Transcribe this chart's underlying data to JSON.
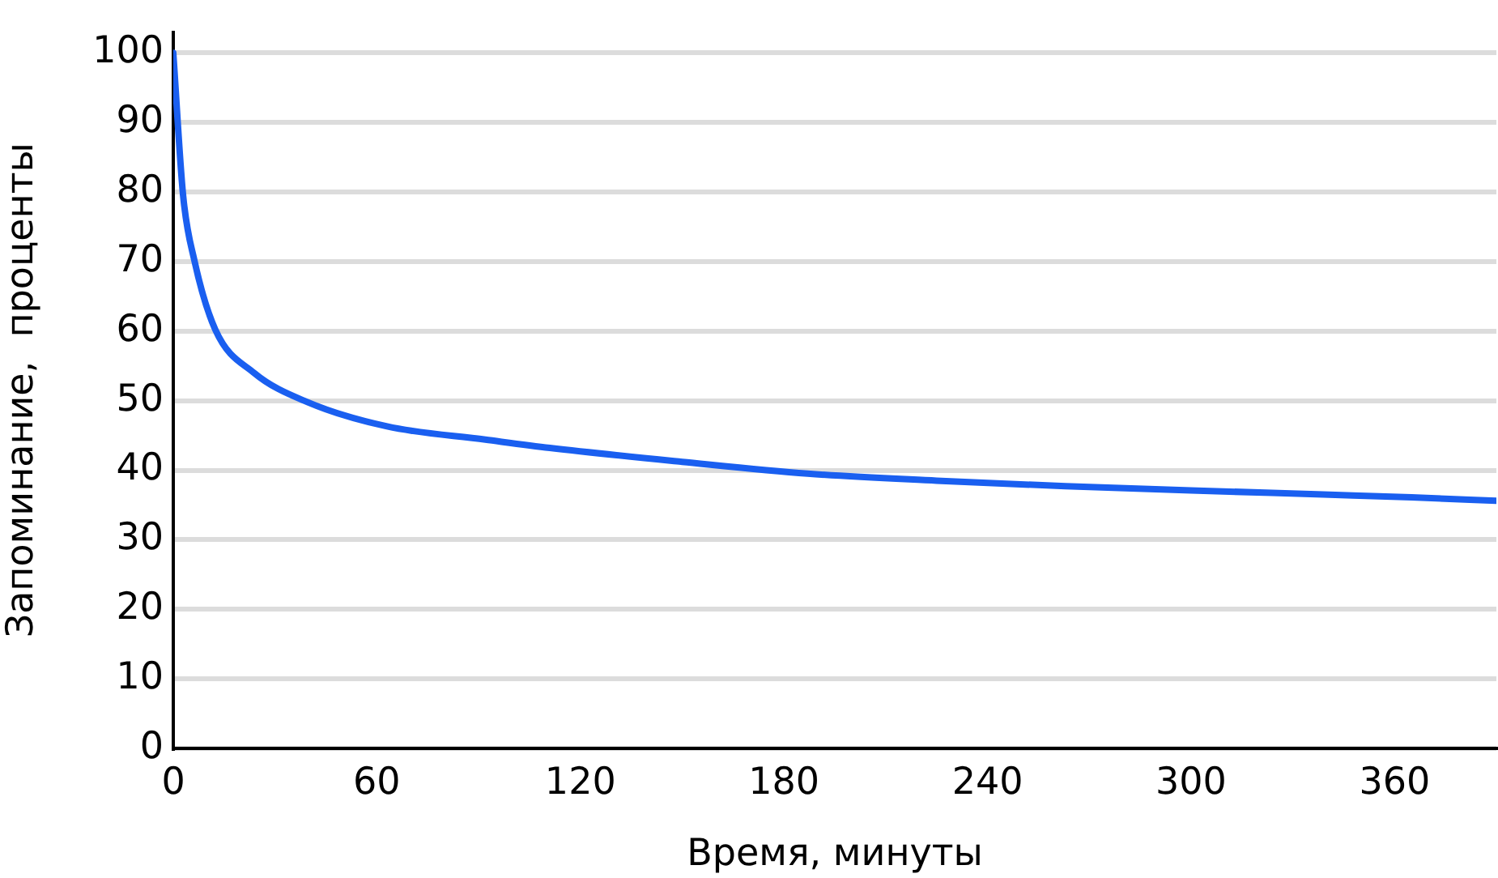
{
  "chart_data": {
    "type": "line",
    "xlabel": "Время, минуты",
    "ylabel": "Запоминание,  проценты",
    "series": [
      {
        "color": "#1a5ff0",
        "x": [
          0,
          2.9,
          6.2,
          12.4,
          23.8,
          39.5,
          63,
          92,
          111,
          150,
          187,
          225,
          263,
          300,
          339,
          365,
          390
        ],
        "values": [
          100,
          79.5,
          70.2,
          60.2,
          54,
          49.8,
          46.3,
          44.4,
          43.2,
          41.2,
          39.5,
          38.5,
          37.7,
          37.1,
          36.5,
          36.1,
          35.6
        ]
      }
    ],
    "xlim": [
      0,
      390
    ],
    "xticks": [
      0,
      60,
      120,
      180,
      240,
      300,
      360
    ],
    "ylim": [
      0,
      103
    ],
    "yticks": [
      0,
      10,
      20,
      30,
      40,
      50,
      60,
      70,
      80,
      90,
      100
    ],
    "grid": "y",
    "legend": false,
    "marker": "none",
    "line_style": "solid"
  }
}
